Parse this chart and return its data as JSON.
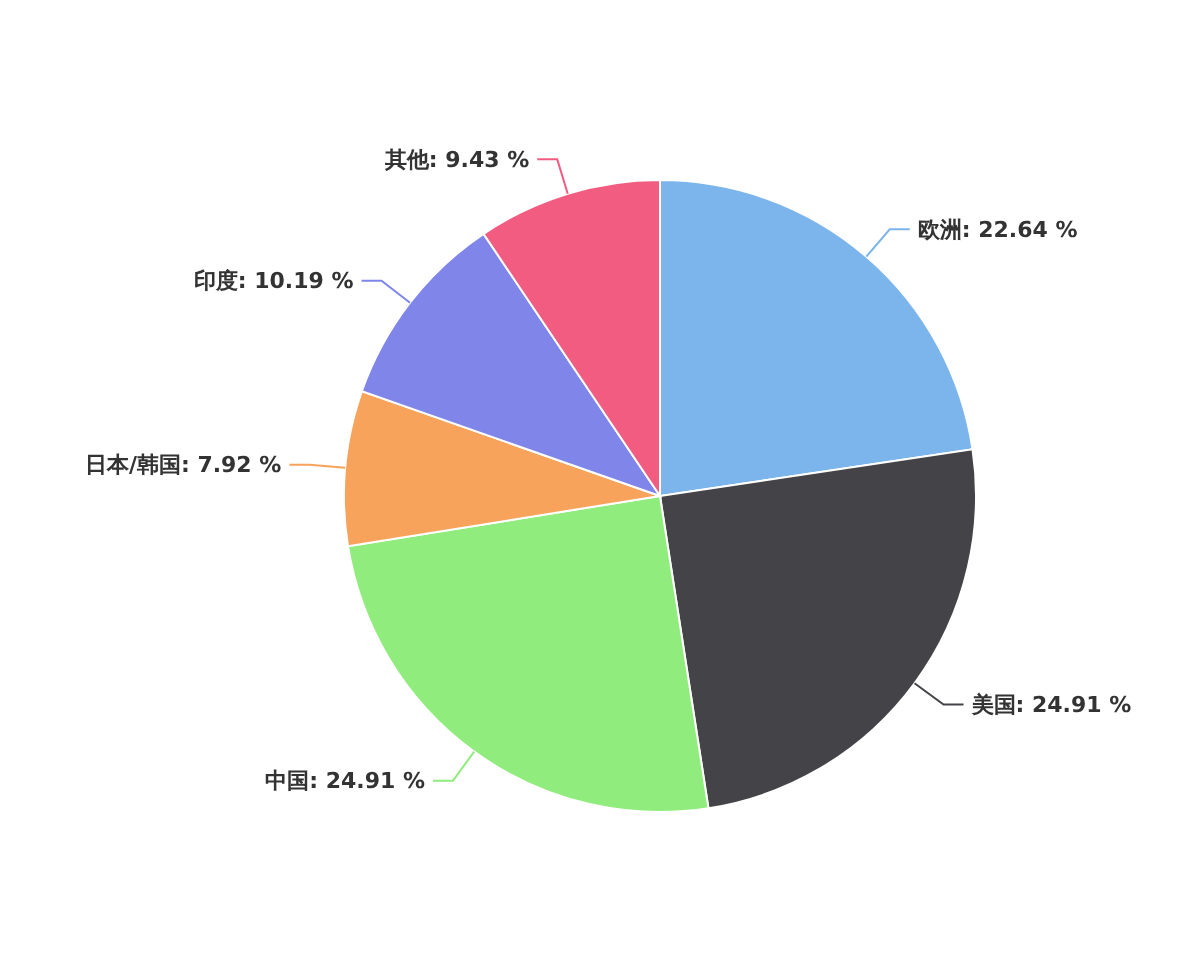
{
  "chart_data": {
    "type": "pie",
    "categories": [
      "欧洲",
      "美国",
      "中国",
      "日本/韩国",
      "印度",
      "其他"
    ],
    "values": [
      22.64,
      24.91,
      24.91,
      7.92,
      10.19,
      9.43
    ],
    "colors": [
      "#7cb5ec",
      "#434348",
      "#90ed7d",
      "#f7a35c",
      "#8085e9",
      "#f15c80"
    ],
    "value_labels": [
      "22.64 %",
      "24.91 %",
      "24.91 %",
      "7.92 %",
      "10.19 %",
      "9.43 %"
    ],
    "legend": false
  }
}
